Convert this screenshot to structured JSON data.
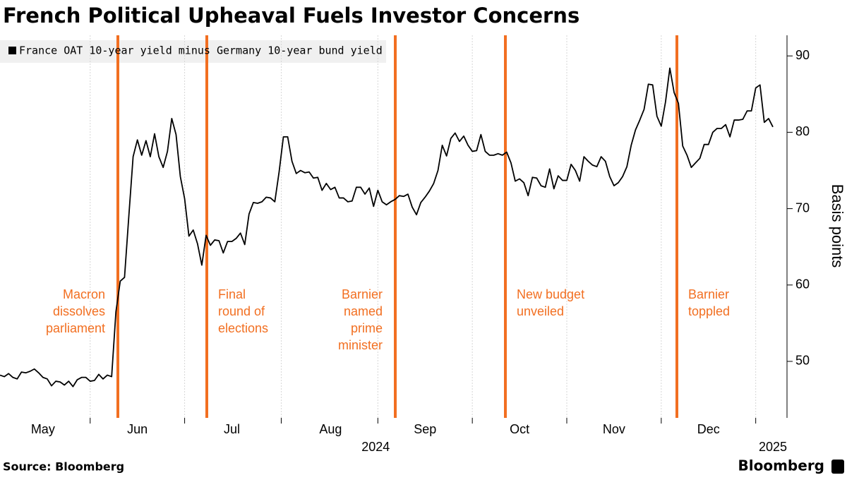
{
  "chart_data": {
    "type": "line",
    "title": "French Political Upheaval Fuels Investor Concerns",
    "y_label": "Basis points",
    "source": "Source: Bloomberg",
    "brand": "Bloomberg",
    "categories": [
      null,
      null,
      null,
      null,
      null,
      null,
      null,
      null,
      null,
      null,
      "May",
      null,
      null,
      null,
      null,
      null,
      null,
      null,
      null,
      null,
      null,
      null,
      null,
      null,
      null,
      null,
      null,
      null,
      null,
      null,
      null,
      null,
      "Jun",
      null,
      null,
      null,
      null,
      null,
      null,
      null,
      null,
      null,
      null,
      null,
      null,
      null,
      null,
      null,
      null,
      null,
      null,
      null,
      null,
      null,
      "Jul",
      null,
      null,
      null,
      null,
      null,
      null,
      null,
      null,
      null,
      null,
      null,
      null,
      null,
      null,
      null,
      null,
      null,
      null,
      null,
      null,
      null,
      null,
      "Aug",
      null,
      null,
      null,
      null,
      null,
      null,
      null,
      null,
      null,
      null,
      null,
      null,
      null,
      null,
      null,
      null,
      null,
      null,
      null,
      null,
      null,
      "Sep",
      null,
      null,
      null,
      null,
      null,
      null,
      null,
      null,
      null,
      null,
      null,
      null,
      null,
      null,
      null,
      null,
      null,
      null,
      null,
      null,
      null,
      "Oct",
      null,
      null,
      null,
      null,
      null,
      null,
      null,
      null,
      null,
      null,
      null,
      null,
      null,
      null,
      null,
      null,
      null,
      null,
      null,
      null,
      null,
      "Nov",
      null,
      null,
      null,
      null,
      null,
      null,
      null,
      null,
      null,
      null,
      null,
      null,
      null,
      null,
      null,
      null,
      null,
      null,
      null,
      null,
      null,
      "Dec",
      null,
      null,
      null,
      null,
      null,
      null,
      null,
      null,
      null,
      null,
      null,
      null,
      null,
      null,
      null
    ],
    "year_labels": [
      "2024",
      "2025"
    ],
    "series": [
      {
        "name": "France OAT 10-year yield minus Germany 10-year bund yield",
        "color": "#000000",
        "values": [
          48.2,
          48.0,
          48.4,
          47.9,
          47.7,
          48.6,
          48.5,
          48.7,
          49.0,
          48.5,
          47.9,
          47.7,
          46.8,
          47.4,
          47.3,
          46.9,
          47.4,
          46.7,
          47.6,
          47.9,
          47.9,
          47.4,
          47.5,
          48.3,
          47.7,
          48.2,
          48.0,
          56.5,
          60.5,
          61.0,
          69.0,
          76.8,
          79.0,
          77.0,
          78.9,
          76.8,
          79.8,
          76.8,
          75.4,
          77.5,
          81.8,
          79.7,
          74.2,
          71.3,
          66.4,
          67.2,
          65.4,
          62.6,
          66.5,
          65.2,
          65.9,
          65.8,
          64.2,
          65.7,
          65.7,
          66.1,
          66.8,
          65.3,
          69.3,
          70.8,
          70.7,
          70.9,
          71.5,
          71.4,
          70.9,
          74.8,
          79.4,
          79.4,
          76.2,
          74.6,
          75.0,
          74.7,
          74.8,
          74.0,
          74.1,
          72.4,
          73.3,
          72.5,
          72.8,
          71.4,
          71.4,
          70.9,
          71.0,
          72.8,
          72.8,
          71.9,
          72.7,
          70.3,
          72.4,
          70.9,
          70.5,
          70.9,
          71.2,
          71.7,
          71.6,
          71.9,
          70.2,
          69.2,
          70.8,
          71.5,
          72.3,
          73.3,
          75.0,
          78.3,
          76.9,
          79.2,
          79.9,
          78.8,
          79.5,
          78.3,
          77.5,
          77.6,
          79.7,
          77.5,
          77.0,
          77.0,
          77.2,
          77.0,
          77.4,
          76.0,
          73.6,
          73.9,
          73.4,
          71.7,
          74.1,
          74.0,
          73.0,
          72.8,
          75.2,
          72.6,
          74.3,
          73.7,
          73.7,
          75.8,
          75.0,
          73.6,
          76.8,
          76.2,
          75.7,
          75.5,
          76.8,
          76.2,
          74.2,
          73.0,
          73.4,
          74.2,
          75.5,
          78.3,
          80.3,
          81.6,
          83.0,
          86.3,
          86.2,
          82.1,
          80.8,
          84.0,
          88.4,
          85.2,
          83.8,
          78.2,
          77.0,
          75.4,
          76.0,
          76.6,
          78.4,
          78.4,
          80.0,
          80.5,
          80.5,
          81.0,
          79.4,
          81.6,
          81.6,
          81.7,
          82.8,
          82.8,
          85.8,
          86.2,
          81.3,
          81.8,
          80.7
        ]
      }
    ],
    "ylim": [
      42.6,
      92.7
    ],
    "yticks": [
      50,
      60,
      70,
      80,
      90
    ],
    "grid": "x",
    "event_color": "#f26f21",
    "events": [
      {
        "label": [
          "Macron",
          "dissolves",
          "parliament"
        ]
      },
      {
        "label": [
          "Final",
          "round of",
          "elections"
        ]
      },
      {
        "label": [
          "Barnier",
          "named",
          "prime",
          "minister"
        ]
      },
      {
        "label": [
          "New budget",
          "unveiled"
        ]
      },
      {
        "label": [
          "Barnier",
          "toppled"
        ]
      }
    ]
  }
}
